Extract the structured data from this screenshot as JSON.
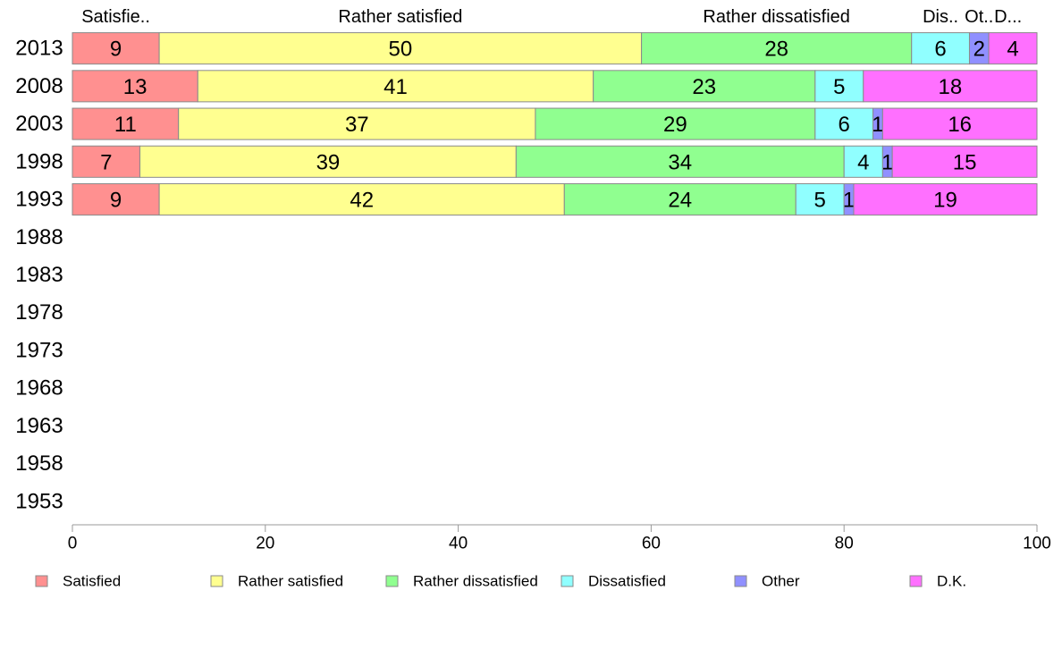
{
  "chart_data": {
    "type": "bar",
    "orientation": "horizontal",
    "stacked": true,
    "categories": [
      "2013",
      "2008",
      "2003",
      "1998",
      "1993",
      "1988",
      "1983",
      "1978",
      "1973",
      "1968",
      "1963",
      "1958",
      "1953"
    ],
    "series": [
      {
        "name": "Satisfied",
        "short_label": "Satisfie..",
        "color": "#ff9090",
        "values": [
          9,
          13,
          11,
          7,
          9,
          null,
          null,
          null,
          null,
          null,
          null,
          null,
          null
        ]
      },
      {
        "name": "Rather satisfied",
        "short_label": "Rather satisfied",
        "color": "#ffff90",
        "values": [
          50,
          41,
          37,
          39,
          42,
          null,
          null,
          null,
          null,
          null,
          null,
          null,
          null
        ]
      },
      {
        "name": "Rather dissatisfied",
        "short_label": "Rather dissatisfied",
        "color": "#90ff90",
        "values": [
          28,
          23,
          29,
          34,
          24,
          null,
          null,
          null,
          null,
          null,
          null,
          null,
          null
        ]
      },
      {
        "name": "Dissatisfied",
        "short_label": "Dis..",
        "color": "#90ffff",
        "values": [
          6,
          5,
          6,
          4,
          5,
          null,
          null,
          null,
          null,
          null,
          null,
          null,
          null
        ]
      },
      {
        "name": "Other",
        "short_label": "Ot..",
        "color": "#9090ff",
        "values": [
          2,
          null,
          1,
          1,
          1,
          null,
          null,
          null,
          null,
          null,
          null,
          null,
          null
        ]
      },
      {
        "name": "D.K.",
        "short_label": "D...",
        "color": "#ff70ff",
        "values": [
          4,
          18,
          16,
          15,
          19,
          null,
          null,
          null,
          null,
          null,
          null,
          null,
          null
        ]
      }
    ],
    "xlim": [
      0,
      100
    ],
    "xticks": [
      0,
      20,
      40,
      60,
      80,
      100
    ],
    "legend_position": "bottom",
    "grid": false
  }
}
